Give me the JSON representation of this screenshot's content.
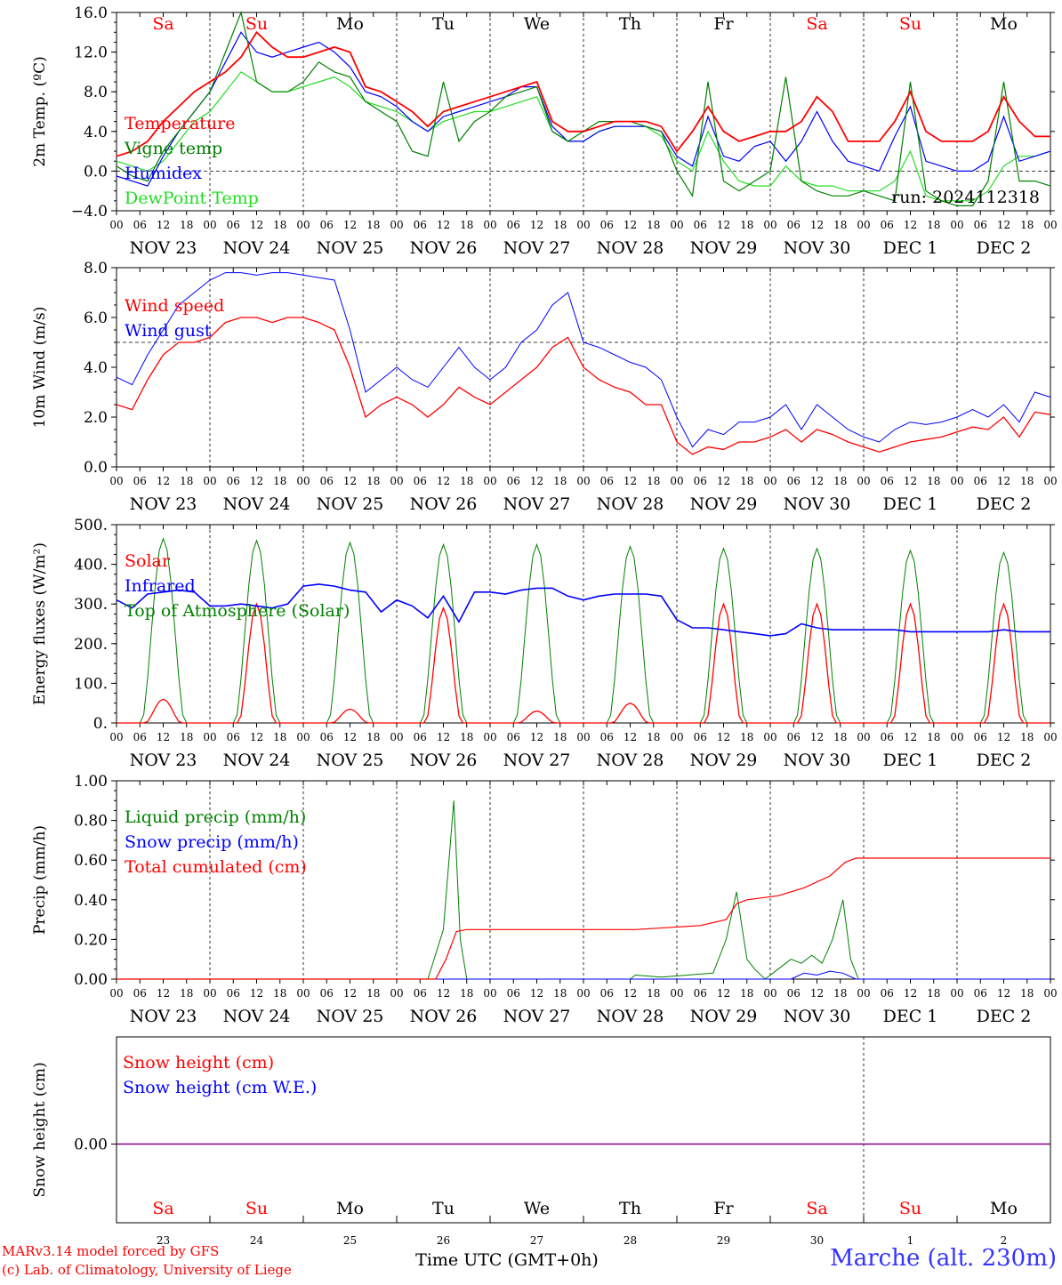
{
  "meteogram": {
    "hour_ticks": [
      "00",
      "06",
      "12",
      "18"
    ],
    "end_tick": "00",
    "date_labels": [
      "NOV 23",
      "NOV 24",
      "NOV 25",
      "NOV 26",
      "NOV 27",
      "NOV 28",
      "NOV 29",
      "NOV 30",
      "DEC  1",
      "DEC  2"
    ],
    "weekdays": [
      "Sa",
      "Su",
      "Mo",
      "Tu",
      "We",
      "Th",
      "Fr",
      "Sa",
      "Su",
      "Mo"
    ],
    "weekday_colors": [
      "#ff0000",
      "#ff0000",
      "#000000",
      "#000000",
      "#000000",
      "#000000",
      "#000000",
      "#ff0000",
      "#ff0000",
      "#000000"
    ],
    "day_numbers": [
      "23",
      "24",
      "25",
      "26",
      "27",
      "28",
      "29",
      "30",
      "1",
      "2"
    ],
    "x_axis_label": "Time UTC (GMT+0h)",
    "run_label": "run: 2024112318",
    "credit_lines": [
      "MARv3.14 model forced by GFS",
      "(c) Lab. of Climatology, University of Liege"
    ],
    "station": "Marche (alt. 230m)",
    "colors": {
      "red": "#ff0000",
      "green": "#008000",
      "blue": "#0000ff",
      "lightgreen": "#22dd22",
      "purple": "#800080"
    }
  },
  "chart_data": [
    {
      "type": "line",
      "ylabel": "2m Temp. (ºC)",
      "ylim": [
        -4.0,
        16.0
      ],
      "yticks": [
        "16.0",
        "12.0",
        "8.0",
        "4.0",
        "0.0",
        "−4.0"
      ],
      "x_unit": "hours since NOV 23 00 UTC, 3-hourly",
      "series": [
        {
          "name": "Temperature",
          "color": "#ff0000",
          "width": 1.8,
          "values": [
            1.5,
            2.0,
            3.0,
            5.0,
            6.5,
            8.0,
            9.0,
            10.0,
            11.5,
            14.0,
            12.5,
            11.5,
            11.5,
            12.0,
            12.5,
            12.0,
            8.5,
            8.0,
            7.0,
            6.0,
            4.5,
            6.0,
            6.5,
            7.0,
            7.5,
            8.0,
            8.5,
            9.0,
            5.0,
            4.0,
            4.0,
            4.5,
            5.0,
            5.0,
            5.0,
            4.5,
            2.0,
            4.0,
            6.5,
            4.0,
            3.0,
            3.5,
            4.0,
            4.0,
            5.0,
            7.5,
            6.0,
            3.0,
            3.0,
            3.0,
            5.0,
            8.0,
            4.0,
            3.0,
            3.0,
            3.0,
            4.0,
            7.5,
            5.0,
            3.5,
            3.5
          ]
        },
        {
          "name": "Vigne temp",
          "color": "#008000",
          "width": 1.2,
          "values": [
            0.5,
            -0.5,
            -1.0,
            2.0,
            4.0,
            6.0,
            8.0,
            12.0,
            16.0,
            9.0,
            8.0,
            8.0,
            9.0,
            11.0,
            10.0,
            9.5,
            7.0,
            6.0,
            5.0,
            2.0,
            1.5,
            9.0,
            3.0,
            5.0,
            6.0,
            7.5,
            8.0,
            8.5,
            4.0,
            3.0,
            4.0,
            5.0,
            5.0,
            5.0,
            4.5,
            4.0,
            0.0,
            -2.5,
            9.0,
            -1.0,
            -2.0,
            -1.0,
            0.0,
            9.5,
            -1.0,
            -2.0,
            -2.5,
            -2.5,
            -2.0,
            -2.5,
            -3.0,
            9.0,
            -2.0,
            -3.0,
            -3.5,
            -3.5,
            -1.0,
            9.0,
            -1.0,
            -1.0,
            -1.5
          ]
        },
        {
          "name": "Humidex",
          "color": "#0000ff",
          "width": 1.2,
          "values": [
            -0.5,
            -1.0,
            -1.5,
            1.5,
            4.0,
            6.0,
            8.0,
            11.0,
            14.0,
            12.0,
            11.5,
            12.0,
            12.5,
            13.0,
            12.0,
            10.5,
            8.0,
            7.5,
            6.5,
            5.0,
            4.0,
            5.5,
            6.0,
            6.5,
            7.0,
            7.5,
            8.5,
            8.5,
            4.5,
            3.0,
            3.0,
            4.0,
            4.5,
            4.5,
            4.5,
            4.0,
            1.5,
            0.5,
            5.5,
            1.5,
            1.0,
            2.5,
            3.0,
            1.0,
            3.0,
            6.0,
            3.0,
            1.0,
            0.5,
            0.0,
            3.5,
            6.5,
            1.0,
            0.5,
            0.0,
            0.0,
            1.0,
            5.5,
            1.0,
            1.5,
            2.0
          ]
        },
        {
          "name": "DewPoint Temp",
          "color": "#22dd22",
          "width": 1.2,
          "values": [
            1.0,
            0.5,
            0.0,
            1.0,
            3.0,
            5.0,
            6.0,
            8.0,
            10.0,
            9.0,
            8.0,
            8.0,
            8.5,
            9.0,
            9.5,
            8.5,
            7.0,
            6.5,
            6.0,
            5.0,
            4.0,
            5.0,
            5.5,
            6.0,
            6.0,
            6.5,
            7.0,
            7.5,
            4.0,
            3.0,
            3.0,
            4.0,
            4.5,
            4.5,
            4.5,
            3.5,
            1.0,
            0.0,
            4.0,
            1.0,
            -1.0,
            -1.5,
            -1.5,
            0.5,
            -1.0,
            -1.5,
            -1.5,
            -2.0,
            -2.0,
            -2.0,
            -1.0,
            2.0,
            -2.5,
            -3.0,
            -3.0,
            -3.0,
            -2.0,
            0.5,
            1.5,
            1.5,
            2.0
          ]
        }
      ]
    },
    {
      "type": "line",
      "ylabel": "10m Wind (m/s)",
      "ylim": [
        0,
        8.0
      ],
      "yticks": [
        "8.0",
        "6.0",
        "4.0",
        "2.0",
        "0.0"
      ],
      "threshold": 5.0,
      "series": [
        {
          "name": "Wind speed",
          "color": "#ff0000",
          "width": 1.3,
          "values": [
            2.5,
            2.3,
            3.5,
            4.5,
            5.0,
            5.0,
            5.2,
            5.8,
            6.0,
            6.0,
            5.8,
            6.0,
            6.0,
            5.8,
            5.5,
            4.0,
            2.0,
            2.5,
            2.8,
            2.5,
            2.0,
            2.5,
            3.2,
            2.8,
            2.5,
            3.0,
            3.5,
            4.0,
            4.8,
            5.2,
            4.0,
            3.5,
            3.2,
            3.0,
            2.5,
            2.5,
            1.0,
            0.5,
            0.8,
            0.7,
            1.0,
            1.0,
            1.2,
            1.5,
            1.0,
            1.5,
            1.3,
            1.0,
            0.8,
            0.6,
            0.8,
            1.0,
            1.1,
            1.2,
            1.4,
            1.6,
            1.5,
            2.0,
            1.2,
            2.2,
            2.1
          ]
        },
        {
          "name": "Wind gust",
          "color": "#0000ff",
          "width": 1.0,
          "values": [
            3.6,
            3.3,
            4.5,
            5.5,
            6.5,
            7.0,
            7.5,
            7.8,
            7.8,
            7.7,
            7.8,
            7.8,
            7.7,
            7.6,
            7.5,
            5.5,
            3.0,
            3.5,
            4.0,
            3.5,
            3.2,
            4.0,
            4.8,
            4.0,
            3.5,
            4.0,
            5.0,
            5.5,
            6.5,
            7.0,
            5.0,
            4.8,
            4.5,
            4.2,
            4.0,
            3.5,
            2.0,
            0.8,
            1.5,
            1.3,
            1.8,
            1.8,
            2.0,
            2.5,
            1.5,
            2.5,
            2.0,
            1.5,
            1.2,
            1.0,
            1.5,
            1.8,
            1.7,
            1.8,
            2.0,
            2.3,
            2.0,
            2.5,
            1.8,
            3.0,
            2.8
          ]
        }
      ]
    },
    {
      "type": "line",
      "ylabel": "Energy fluxes (W/m²)",
      "ylim": [
        0,
        500
      ],
      "yticks": [
        "500.",
        "400.",
        "300.",
        "200.",
        "100.",
        "0."
      ],
      "series": [
        {
          "name": "Solar",
          "color": "#ff0000",
          "width": 1.3,
          "peak_values": [
            60,
            300,
            35,
            290,
            30,
            50,
            300,
            300,
            300,
            300
          ]
        },
        {
          "name": "Infrared",
          "color": "#0000ff",
          "width": 1.6,
          "values": [
            310,
            290,
            325,
            330,
            335,
            330,
            295,
            295,
            300,
            295,
            290,
            300,
            345,
            350,
            345,
            335,
            330,
            280,
            310,
            295,
            265,
            320,
            255,
            330,
            330,
            325,
            335,
            340,
            340,
            320,
            310,
            320,
            325,
            325,
            325,
            320,
            260,
            240,
            240,
            235,
            230,
            225,
            220,
            225,
            250,
            240,
            235,
            235,
            235,
            235,
            235,
            230,
            230,
            230,
            230,
            230,
            230,
            235,
            230,
            230,
            230
          ]
        },
        {
          "name": "Top of Atmosphere (Solar)",
          "color": "#008000",
          "width": 1.0,
          "peak_values": [
            465,
            460,
            455,
            450,
            450,
            445,
            440,
            440,
            435,
            430
          ]
        }
      ]
    },
    {
      "type": "line",
      "ylabel": "Precip (mm/h)",
      "ylim": [
        0,
        1.0
      ],
      "yticks": [
        "1.00",
        "0.80",
        "0.60",
        "0.40",
        "0.20",
        "0.00"
      ],
      "series": [
        {
          "name": "Liquid precip (mm/h)",
          "color": "#008000",
          "width": 1.0,
          "points": [
            [
              0,
              0
            ],
            [
              240,
              0
            ],
            [
              252,
              0.25
            ],
            [
              260,
              0.9
            ],
            [
              265,
              0.2
            ],
            [
              270,
              0
            ],
            [
              396,
              0
            ],
            [
              400,
              0.02
            ],
            [
              420,
              0.01
            ],
            [
              440,
              0.02
            ],
            [
              460,
              0.03
            ],
            [
              470,
              0.2
            ],
            [
              478,
              0.44
            ],
            [
              486,
              0.1
            ],
            [
              492,
              0.05
            ],
            [
              500,
              0
            ],
            [
              510,
              0.05
            ],
            [
              520,
              0.1
            ],
            [
              528,
              0.08
            ],
            [
              536,
              0.12
            ],
            [
              544,
              0.08
            ],
            [
              552,
              0.2
            ],
            [
              560,
              0.4
            ],
            [
              566,
              0.1
            ],
            [
              572,
              0
            ],
            [
              720,
              0
            ]
          ]
        },
        {
          "name": "Snow precip (mm/h)",
          "color": "#0000ff",
          "width": 1.0,
          "points": [
            [
              0,
              0
            ],
            [
              520,
              0
            ],
            [
              530,
              0.03
            ],
            [
              540,
              0.02
            ],
            [
              550,
              0.04
            ],
            [
              560,
              0.03
            ],
            [
              570,
              0
            ],
            [
              720,
              0
            ]
          ]
        },
        {
          "name": "Total cumulated (cm)",
          "color": "#ff0000",
          "width": 1.2,
          "points": [
            [
              0,
              0
            ],
            [
              246,
              0
            ],
            [
              254,
              0.1
            ],
            [
              262,
              0.24
            ],
            [
              270,
              0.25
            ],
            [
              400,
              0.25
            ],
            [
              450,
              0.27
            ],
            [
              470,
              0.3
            ],
            [
              478,
              0.38
            ],
            [
              486,
              0.4
            ],
            [
              510,
              0.42
            ],
            [
              530,
              0.46
            ],
            [
              550,
              0.52
            ],
            [
              562,
              0.59
            ],
            [
              570,
              0.61
            ],
            [
              720,
              0.61
            ]
          ]
        }
      ]
    },
    {
      "type": "line",
      "ylabel": "Snow height (cm)",
      "ylim": [
        -1,
        1
      ],
      "yticks": [
        "0.00"
      ],
      "series": [
        {
          "name": "Snow height (cm)",
          "color": "#ff0000",
          "values": [
            0,
            0
          ]
        },
        {
          "name": "Snow height (cm W.E.)",
          "color": "#0000ff",
          "values": [
            0,
            0
          ]
        }
      ]
    }
  ]
}
